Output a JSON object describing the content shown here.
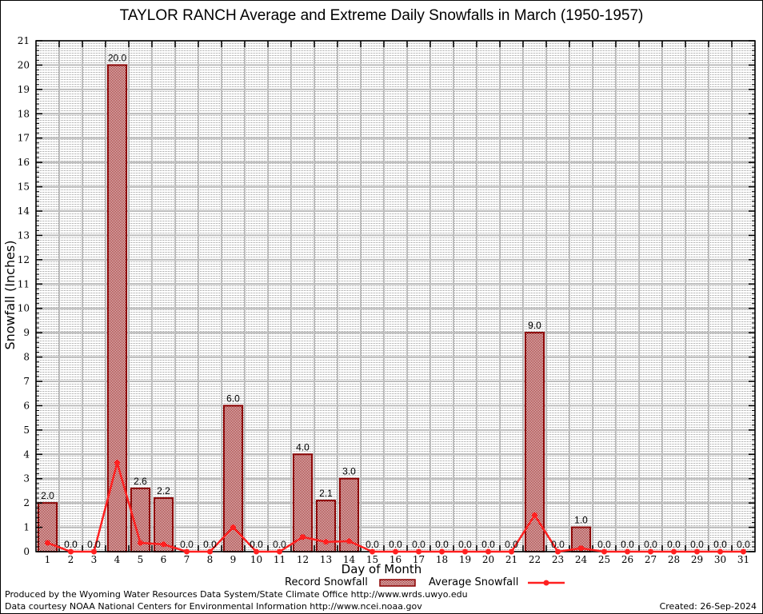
{
  "chart_data": {
    "type": "bar",
    "title": "TAYLOR RANCH Average and Extreme Daily Snowfalls in March (1950-1957)",
    "xlabel": "Day of Month",
    "ylabel": "Snowfall (Inches)",
    "ylim": [
      0,
      21
    ],
    "yticks": [
      "0",
      "1",
      "2",
      "3",
      "4",
      "5",
      "6",
      "7",
      "8",
      "9",
      "10",
      "11",
      "12",
      "13",
      "14",
      "15",
      "16",
      "17",
      "18",
      "19",
      "20",
      "21"
    ],
    "categories": [
      "1",
      "2",
      "3",
      "4",
      "5",
      "6",
      "7",
      "8",
      "9",
      "10",
      "11",
      "12",
      "13",
      "14",
      "15",
      "16",
      "17",
      "18",
      "19",
      "20",
      "21",
      "22",
      "23",
      "24",
      "25",
      "26",
      "27",
      "28",
      "29",
      "30",
      "31"
    ],
    "grid": true,
    "legend_placement": "bottom-center",
    "series": [
      {
        "name": "Record Snowfall",
        "type": "bar",
        "color": "#8b0000",
        "values": [
          2.0,
          0.0,
          0.0,
          20.0,
          2.6,
          2.2,
          0.0,
          0.0,
          6.0,
          0.0,
          0.0,
          4.0,
          2.1,
          3.0,
          0.0,
          0.0,
          0.0,
          0.0,
          0.0,
          0.0,
          0.0,
          9.0,
          0.0,
          1.0,
          0.0,
          0.0,
          0.0,
          0.0,
          0.0,
          0.0,
          0.0
        ],
        "labels": [
          "2.0",
          "0.0",
          "0.0",
          "20.0",
          "2.6",
          "2.2",
          "0.0",
          "0.0",
          "6.0",
          "0.0",
          "0.0",
          "4.0",
          "2.1",
          "3.0",
          "0.0",
          "0.0",
          "0.0",
          "0.0",
          "0.0",
          "0.0",
          "0.0",
          "9.0",
          "0.0",
          "1.0",
          "0.0",
          "0.0",
          "0.0",
          "0.0",
          "0.0",
          "0.0",
          "0.0"
        ]
      },
      {
        "name": "Average Snowfall",
        "type": "line",
        "color": "#ff2020",
        "values": [
          0.36,
          0.0,
          0.0,
          3.65,
          0.36,
          0.3,
          0.0,
          0.0,
          1.0,
          0.0,
          0.0,
          0.6,
          0.4,
          0.43,
          0.0,
          0.0,
          0.0,
          0.0,
          0.0,
          0.0,
          0.0,
          1.5,
          0.0,
          0.14,
          0.0,
          0.0,
          0.0,
          0.0,
          0.0,
          0.0,
          0.0
        ]
      }
    ]
  },
  "legend": {
    "record_label": "Record Snowfall",
    "average_label": "Average Snowfall"
  },
  "footer": {
    "credit1": "Produced by the Wyoming Water Resources Data System/State Climate Office http://www.wrds.uwyo.edu",
    "credit2": "Data courtesy NOAA National Centers for Environmental Information http://www.ncei.noaa.gov",
    "created": "Created: 26-Sep-2024"
  }
}
